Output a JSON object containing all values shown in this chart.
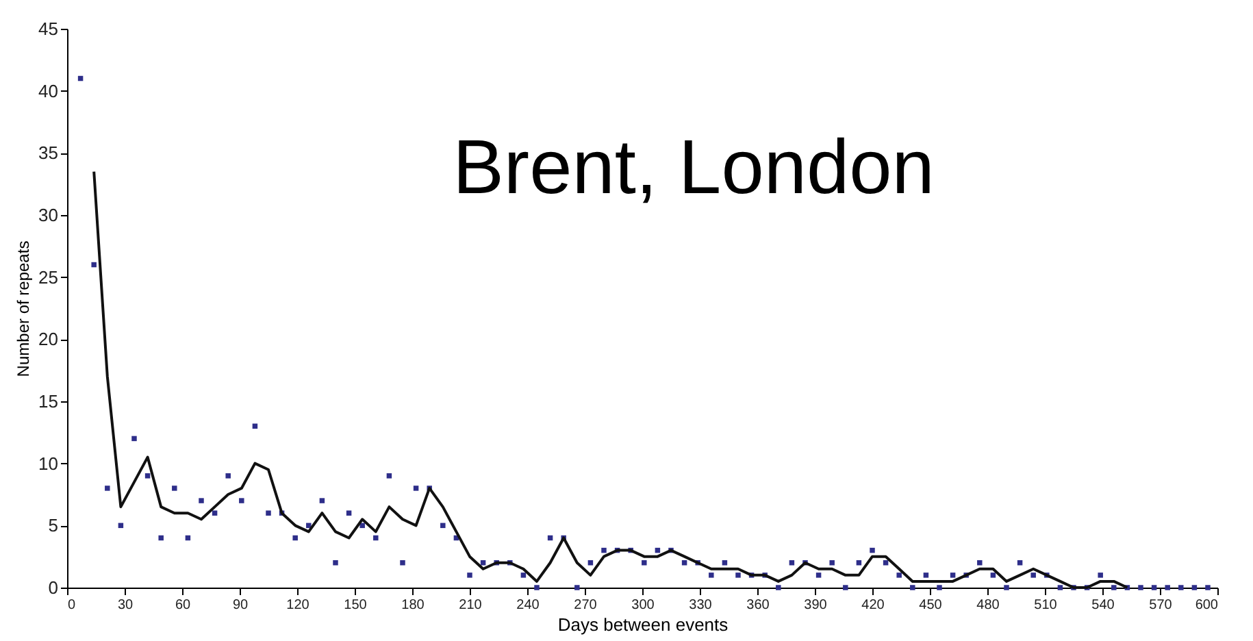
{
  "chart_data": {
    "type": "scatter",
    "title": "Brent, London",
    "xlabel": "Days between events",
    "ylabel": "Number of repeats",
    "xlim": [
      0,
      600
    ],
    "xticks": [
      0,
      30,
      60,
      90,
      120,
      150,
      180,
      210,
      240,
      270,
      300,
      330,
      360,
      390,
      420,
      450,
      480,
      510,
      540,
      570,
      600
    ],
    "ylim": [
      0,
      45
    ],
    "yticks": [
      0,
      5,
      10,
      15,
      20,
      25,
      30,
      35,
      40,
      45
    ],
    "grid": false,
    "series": [
      {
        "marker": "square",
        "color": "#2e2e8a",
        "x": [
          7,
          14,
          21,
          28,
          35,
          42,
          49,
          56,
          63,
          70,
          77,
          84,
          91,
          98,
          105,
          112,
          119,
          126,
          133,
          140,
          147,
          154,
          161,
          168,
          175,
          182,
          189,
          196,
          203,
          210,
          217,
          224,
          231,
          238,
          245,
          252,
          259,
          266,
          273,
          280,
          287,
          294,
          301,
          308,
          315,
          322,
          329,
          336,
          343,
          350,
          357,
          364,
          371,
          378,
          385,
          392,
          399,
          406,
          413,
          420,
          427,
          434,
          441,
          448,
          455,
          462,
          469,
          476,
          483,
          490,
          497,
          504,
          511,
          518,
          525,
          532,
          539,
          546,
          553,
          560,
          567,
          574,
          581,
          588,
          595
        ],
        "values": [
          41,
          26,
          8,
          5,
          12,
          9,
          4,
          8,
          4,
          7,
          6,
          9,
          7,
          13,
          6,
          6,
          4,
          5,
          7,
          2,
          6,
          5,
          4,
          9,
          2,
          8,
          8,
          5,
          4,
          1,
          2,
          2,
          2,
          1,
          0,
          4,
          4,
          0,
          2,
          3,
          3,
          3,
          2,
          3,
          3,
          2,
          2,
          1,
          2,
          1,
          1,
          1,
          0,
          2,
          2,
          1,
          2,
          0,
          2,
          3,
          2,
          1,
          0,
          1,
          0,
          1,
          1,
          2,
          1,
          0,
          2,
          1,
          1,
          0,
          0,
          0,
          1,
          0,
          0,
          0,
          0,
          0,
          0,
          0,
          0
        ]
      },
      {
        "type": "line",
        "marker": "none",
        "line_style": "solid",
        "color": "#111111",
        "x": [
          14,
          21,
          28,
          35,
          42,
          49,
          56,
          63,
          70,
          77,
          84,
          91,
          98,
          105,
          112,
          119,
          126,
          133,
          140,
          147,
          154,
          161,
          168,
          175,
          182,
          189,
          196,
          203,
          210,
          217,
          224,
          231,
          238,
          245,
          252,
          259,
          266,
          273,
          280,
          287,
          294,
          301,
          308,
          315,
          322,
          329,
          336,
          343,
          350,
          357,
          364,
          371,
          378,
          385,
          392,
          399,
          406,
          413,
          420,
          427,
          434,
          441,
          448,
          455,
          462,
          469,
          476,
          483,
          490,
          497,
          504,
          511,
          518,
          525,
          532,
          539,
          546,
          553
        ],
        "values": [
          33.5,
          17,
          6.5,
          8.5,
          10.5,
          6.5,
          6,
          6,
          5.5,
          6.5,
          7.5,
          8,
          10,
          9.5,
          6,
          5,
          4.5,
          6,
          4.5,
          4,
          5.5,
          4.5,
          6.5,
          5.5,
          5,
          8,
          6.5,
          4.5,
          2.5,
          1.5,
          2,
          2,
          1.5,
          0.5,
          2,
          4,
          2,
          1,
          2.5,
          3,
          3,
          2.5,
          2.5,
          3,
          2.5,
          2,
          1.5,
          1.5,
          1.5,
          1,
          1,
          0.5,
          1,
          2,
          1.5,
          1.5,
          1,
          1,
          2.5,
          2.5,
          1.5,
          0.5,
          0.5,
          0.5,
          0.5,
          1,
          1.5,
          1.5,
          0.5,
          1,
          1.5,
          1,
          0.5,
          0,
          0,
          0.5,
          0.5,
          0
        ]
      }
    ]
  }
}
